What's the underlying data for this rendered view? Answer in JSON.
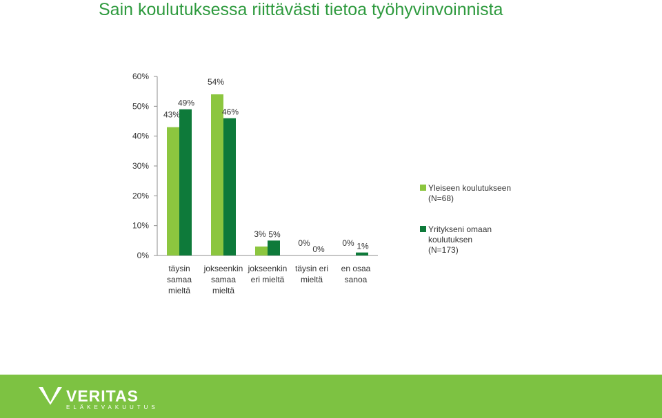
{
  "title": "Sain koulutuksessa riittävästi tietoa työhyvinvoinnista",
  "chart_data": {
    "type": "bar",
    "categories": [
      [
        "täysin",
        "samaa",
        "mieltä"
      ],
      [
        "jokseenkin",
        "samaa",
        "mieltä"
      ],
      [
        "jokseenkin",
        "eri mieltä"
      ],
      [
        "täysin eri",
        "mieltä"
      ],
      [
        "en osaa",
        "sanoa"
      ]
    ],
    "series": [
      {
        "name": "Yleiseen koulutukseen (N=68)",
        "color": "#8cc63f",
        "values": [
          43,
          54,
          3,
          0,
          0
        ],
        "labels": [
          "43%",
          "54%",
          "3%",
          "0%",
          "0%"
        ]
      },
      {
        "name": "Yritykseni omaan koulutuksen (N=173)",
        "color": "#0e7a3a",
        "values": [
          49,
          46,
          5,
          0,
          1
        ],
        "labels": [
          "49%",
          "46%",
          "5%",
          "0%",
          "1%"
        ]
      }
    ],
    "yticks": [
      "0%",
      "10%",
      "20%",
      "30%",
      "40%",
      "50%",
      "60%"
    ],
    "ylim": [
      0,
      60
    ],
    "grid": false,
    "legend_position": "right"
  },
  "legend": [
    {
      "lines": [
        "Yleiseen koulutukseen",
        "(N=68)"
      ],
      "color": "#8cc63f"
    },
    {
      "lines": [
        "Yritykseni omaan",
        "koulutuksen",
        "(N=173)"
      ],
      "color": "#0e7a3a"
    }
  ],
  "footer": {
    "brand": "VERITAS",
    "tagline": "ELÄKEVAKUUTUS",
    "color": "#7dc242"
  }
}
